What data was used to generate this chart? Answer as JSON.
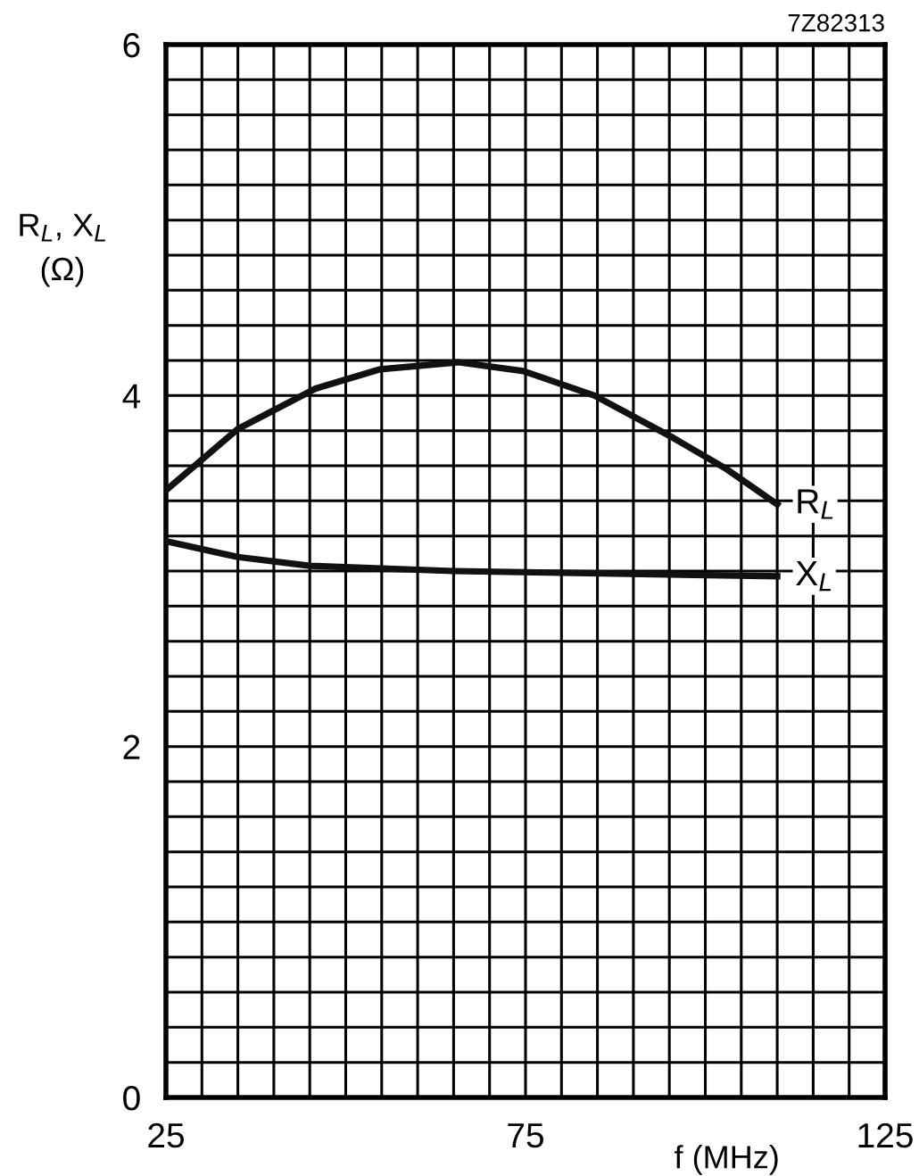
{
  "chart_data": {
    "type": "line",
    "xlabel": "f (MHz)",
    "ylabel": "R$_{L}$, X$_{L}$\n(Ω)",
    "annotations": [
      "7Z82313"
    ],
    "series": [
      {
        "name": "R$_{L}$",
        "color": "#111111",
        "x": [
          25,
          35,
          45.8,
          54.8,
          65.7,
          74.7,
          84.6,
          95.5,
          103,
          110
        ],
        "values": [
          3.46,
          3.81,
          4.04,
          4.15,
          4.19,
          4.14,
          4.0,
          3.76,
          3.58,
          3.38
        ]
      },
      {
        "name": "X$_{L}$",
        "color": "#111111",
        "x": [
          25,
          35,
          45,
          65,
          110
        ],
        "values": [
          3.17,
          3.08,
          3.03,
          3.0,
          2.97
        ]
      }
    ],
    "xlim": [
      25,
      125
    ],
    "ylim": [
      0,
      6
    ],
    "xticks": [
      25,
      {
        "value": 30,
        "label": null
      },
      {
        "value": 35,
        "label": null
      },
      {
        "value": 40,
        "label": null
      },
      {
        "value": 45,
        "label": null
      },
      {
        "value": 50,
        "label": null
      },
      {
        "value": 55,
        "label": null
      },
      {
        "value": 60,
        "label": null
      },
      {
        "value": 65,
        "label": null
      },
      {
        "value": 70,
        "label": null
      },
      75,
      {
        "value": 80,
        "label": null
      },
      {
        "value": 85,
        "label": null
      },
      {
        "value": 90,
        "label": null
      },
      {
        "value": 95,
        "label": null
      },
      {
        "value": 100,
        "label": null
      },
      {
        "value": 105,
        "label": null
      },
      {
        "value": 110,
        "label": null
      },
      {
        "value": 115,
        "label": null
      },
      {
        "value": 120,
        "label": null
      },
      125
    ],
    "yticks": [
      0,
      {
        "value": 0.2,
        "label": null
      },
      {
        "value": 0.4,
        "label": null
      },
      {
        "value": 0.6,
        "label": null
      },
      {
        "value": 0.8,
        "label": null
      },
      {
        "value": 1.0,
        "label": null
      },
      {
        "value": 1.2,
        "label": null
      },
      {
        "value": 1.4,
        "label": null
      },
      {
        "value": 1.6,
        "label": null
      },
      {
        "value": 1.8,
        "label": null
      },
      2,
      {
        "value": 2.2,
        "label": null
      },
      {
        "value": 2.4,
        "label": null
      },
      {
        "value": 2.6,
        "label": null
      },
      {
        "value": 2.8,
        "label": null
      },
      {
        "value": 3.0,
        "label": null
      },
      {
        "value": 3.2,
        "label": null
      },
      {
        "value": 3.4,
        "label": null
      },
      {
        "value": 3.6,
        "label": null
      },
      {
        "value": 3.8,
        "label": null
      },
      4,
      {
        "value": 4.2,
        "label": null
      },
      {
        "value": 4.4,
        "label": null
      },
      {
        "value": 4.6,
        "label": null
      },
      {
        "value": 4.8,
        "label": null
      },
      {
        "value": 5.0,
        "label": null
      },
      {
        "value": 5.2,
        "label": null
      },
      {
        "value": 5.4,
        "label": null
      },
      {
        "value": 5.6,
        "label": null
      },
      {
        "value": 5.8,
        "label": null
      },
      6
    ],
    "grid": true,
    "marker": "none",
    "line_style": "solid"
  }
}
